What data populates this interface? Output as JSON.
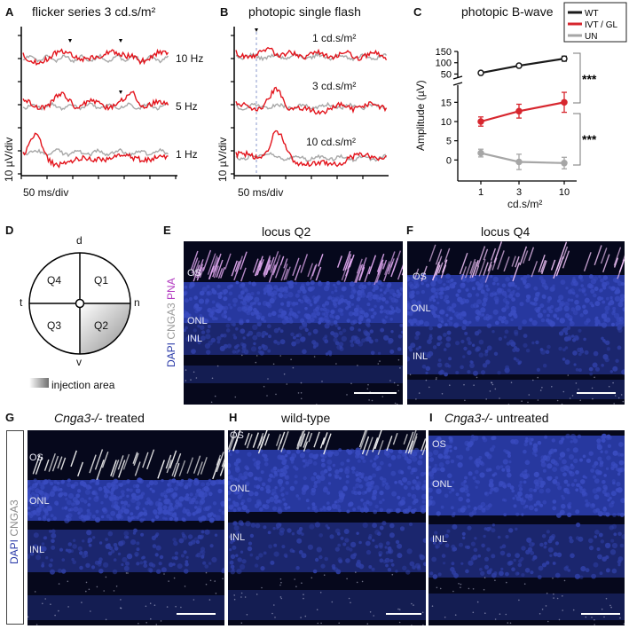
{
  "panel_labels": {
    "a": "A",
    "b": "B",
    "c": "C",
    "d": "D",
    "e": "E",
    "f": "F",
    "g": "G",
    "h": "H",
    "i": "I"
  },
  "panelA": {
    "title": "flicker series 3 cd.s/m²",
    "traces": [
      "10 Hz",
      "5 Hz",
      "1 Hz"
    ],
    "ylabel": "10 µV/div",
    "xlabel": "50 ms/div"
  },
  "panelB": {
    "title": "photopic single flash",
    "traces": [
      "1 cd.s/m²",
      "3 cd.s/m²",
      "10 cd.s/m²"
    ],
    "ylabel": "10 µV/div",
    "xlabel": "50 ms/div"
  },
  "chart_data": {
    "type": "line",
    "title": "photopic B-wave",
    "xlabel": "cd.s/m²",
    "ylabel": "Amplitude (µV)",
    "categories": [
      "1",
      "3",
      "10"
    ],
    "y_ticks_upper": [
      "50",
      "100",
      "150"
    ],
    "y_ticks_lower": [
      "0",
      "5",
      "10",
      "15"
    ],
    "ylim_lower": [
      -5,
      19
    ],
    "ylim_upper": [
      40,
      150
    ],
    "broken_axis": true,
    "legend_position": "top-right",
    "series": [
      {
        "name": "WT",
        "color": "#1a1a1a",
        "values": [
          55,
          87,
          118
        ],
        "errors": [
          4,
          7,
          11
        ]
      },
      {
        "name": "IVT / GL",
        "color": "#d7262e",
        "values": [
          10,
          12.7,
          15
        ],
        "errors": [
          1.2,
          1.8,
          2.6
        ]
      },
      {
        "name": "UN",
        "color": "#a6a6a6",
        "values": [
          1.8,
          -0.5,
          -0.8
        ],
        "errors": [
          1.0,
          2.0,
          1.5
        ]
      }
    ],
    "annotations": [
      "***",
      "***"
    ]
  },
  "panelD": {
    "quadrants": [
      "Q4",
      "Q1",
      "Q3",
      "Q2"
    ],
    "directions": {
      "d": "d",
      "t": "t",
      "n": "n",
      "v": "v"
    },
    "legend": "injection area"
  },
  "panelE": {
    "title": "locus Q2",
    "side_label_1": "DAPI",
    "side_label_2": "CNGA3",
    "side_label_3": "PNA",
    "layers": [
      "OS",
      "ONL",
      "INL"
    ]
  },
  "panelF": {
    "title": "locus Q4",
    "layers": [
      "OS",
      "ONL",
      "INL"
    ]
  },
  "panelG": {
    "title_italic": "Cnga3-/-",
    "title_rest": " treated",
    "side_label_1": "DAPI",
    "side_label_2": "CNGA3",
    "layers": [
      "OS",
      "ONL",
      "INL"
    ]
  },
  "panelH": {
    "title": "wild-type",
    "layers": [
      "OS",
      "ONL",
      "INL"
    ]
  },
  "panelI": {
    "title_italic": "Cnga3-/-",
    "title_rest": " untreated",
    "layers": [
      "OS",
      "ONL",
      "INL"
    ]
  },
  "colors": {
    "red": "#e3141c",
    "grey": "#a8a8a8",
    "nuclei": "#24339a",
    "background": "#06081c"
  }
}
